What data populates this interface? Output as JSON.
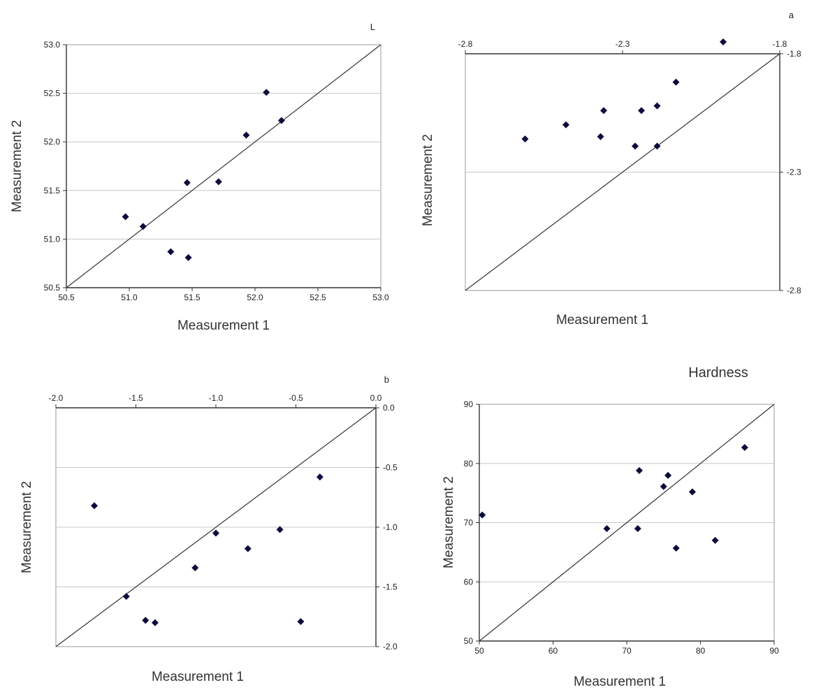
{
  "chart_data": [
    {
      "type": "scatter",
      "title": "L",
      "xlabel": "Measurement 1",
      "ylabel": "Measurement 2",
      "xlim": [
        50.5,
        53.0
      ],
      "ylim": [
        50.5,
        53.0
      ],
      "xticks": [
        "50.5",
        "51.0",
        "51.5",
        "52.0",
        "52.5",
        "53.0"
      ],
      "yticks": [
        "50.5",
        "51.0",
        "51.5",
        "52.0",
        "52.5",
        "53.0"
      ],
      "x_axis_position": "bottom",
      "y_axis_position": "left",
      "grid": "horizontal",
      "reference_line": "y = x",
      "points": [
        {
          "x": 50.97,
          "y": 51.23
        },
        {
          "x": 51.11,
          "y": 51.13
        },
        {
          "x": 51.33,
          "y": 50.87
        },
        {
          "x": 51.47,
          "y": 50.81
        },
        {
          "x": 51.46,
          "y": 51.58
        },
        {
          "x": 51.71,
          "y": 51.59
        },
        {
          "x": 51.93,
          "y": 52.07
        },
        {
          "x": 52.09,
          "y": 52.51
        },
        {
          "x": 52.21,
          "y": 52.22
        }
      ]
    },
    {
      "type": "scatter",
      "title": "a",
      "xlabel": "Measurement 1",
      "ylabel": "Measurement 2",
      "xlim": [
        -2.8,
        -1.8
      ],
      "ylim": [
        -2.8,
        -1.8
      ],
      "xticks": [
        "-2.8",
        "-2.3",
        "-1.8"
      ],
      "yticks": [
        "-2.8",
        "-2.3",
        "-1.8"
      ],
      "x_axis_position": "top",
      "y_axis_position": "right",
      "grid": "horizontal",
      "reference_line": "y = x",
      "points": [
        {
          "x": -2.61,
          "y": -2.16
        },
        {
          "x": -2.48,
          "y": -2.1
        },
        {
          "x": -2.37,
          "y": -2.15
        },
        {
          "x": -2.36,
          "y": -2.04
        },
        {
          "x": -2.26,
          "y": -2.19
        },
        {
          "x": -2.24,
          "y": -2.04
        },
        {
          "x": -2.19,
          "y": -2.02
        },
        {
          "x": -2.19,
          "y": -2.19
        },
        {
          "x": -2.13,
          "y": -1.92
        },
        {
          "x": -1.98,
          "y": -1.75
        }
      ]
    },
    {
      "type": "scatter",
      "title": "b",
      "xlabel": "Measurement 1",
      "ylabel": "Measurement 2",
      "xlim": [
        -2.0,
        0.0
      ],
      "ylim": [
        -2.0,
        0.0
      ],
      "xticks": [
        "-2.0",
        "-1.5",
        "-1.0",
        "-0.5",
        "0.0"
      ],
      "yticks": [
        "-2.0",
        "-1.5",
        "-1.0",
        "-0.5",
        "0.0"
      ],
      "x_axis_position": "top",
      "y_axis_position": "right",
      "grid": "horizontal",
      "reference_line": "y = x",
      "points": [
        {
          "x": -1.76,
          "y": -0.82
        },
        {
          "x": -1.56,
          "y": -1.58
        },
        {
          "x": -1.44,
          "y": -1.78
        },
        {
          "x": -1.38,
          "y": -1.8
        },
        {
          "x": -1.13,
          "y": -1.34
        },
        {
          "x": -1.0,
          "y": -1.05
        },
        {
          "x": -0.8,
          "y": -1.18
        },
        {
          "x": -0.6,
          "y": -1.02
        },
        {
          "x": -0.47,
          "y": -1.79
        },
        {
          "x": -0.35,
          "y": -0.58
        }
      ]
    },
    {
      "type": "scatter",
      "title": "Hardness",
      "xlabel": "Measurement 1",
      "ylabel": "Measurement 2",
      "xlim": [
        50,
        90
      ],
      "ylim": [
        50,
        90
      ],
      "xticks": [
        "50",
        "60",
        "70",
        "80",
        "90"
      ],
      "yticks": [
        "50",
        "60",
        "70",
        "80",
        "90"
      ],
      "x_axis_position": "bottom",
      "y_axis_position": "left",
      "grid": "horizontal",
      "reference_line": "y = x",
      "points": [
        {
          "x": 50.4,
          "y": 71.3
        },
        {
          "x": 67.3,
          "y": 69.0
        },
        {
          "x": 71.5,
          "y": 69.0
        },
        {
          "x": 71.7,
          "y": 78.8
        },
        {
          "x": 75.0,
          "y": 76.1
        },
        {
          "x": 75.6,
          "y": 78.0
        },
        {
          "x": 76.7,
          "y": 65.7
        },
        {
          "x": 78.9,
          "y": 75.2
        },
        {
          "x": 82.0,
          "y": 67.0
        },
        {
          "x": 86.0,
          "y": 82.7
        }
      ]
    }
  ],
  "colors": {
    "marker": "#0b0b3c",
    "axis": "#333333",
    "grid": "#c8c8c8",
    "reference_line": "#333333"
  }
}
